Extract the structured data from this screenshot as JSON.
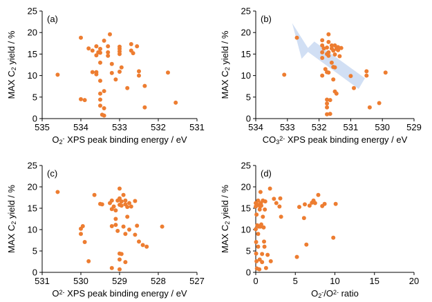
{
  "colors": {
    "marker": "#ED7D31",
    "arrow": "#C9D9F2"
  },
  "chart_data": [
    {
      "type": "scatter",
      "panel_label": "(a)",
      "xlabel_parts": [
        "O",
        "2",
        "-",
        " XPS peak binding energy / eV"
      ],
      "ylabel_parts": [
        "MAX C",
        "2",
        " yield / %"
      ],
      "xlim": [
        535,
        531
      ],
      "ylim": [
        0,
        25
      ],
      "x_reversed": true,
      "xticks": [
        "535",
        "534",
        "533",
        "532",
        "531"
      ],
      "yticks": [
        "0",
        "5",
        "10",
        "15",
        "20",
        "25"
      ],
      "points": [
        [
          534.6,
          10.2
        ],
        [
          534.0,
          18.8
        ],
        [
          534.0,
          4.5
        ],
        [
          533.9,
          4.3
        ],
        [
          533.8,
          16.3
        ],
        [
          533.7,
          10.8
        ],
        [
          533.6,
          10.8
        ],
        [
          533.6,
          10.3
        ],
        [
          533.7,
          15.8
        ],
        [
          533.6,
          16.8
        ],
        [
          533.6,
          14.7
        ],
        [
          533.55,
          15.4
        ],
        [
          533.5,
          16.2
        ],
        [
          533.5,
          15.3
        ],
        [
          533.5,
          13.0
        ],
        [
          533.5,
          8.8
        ],
        [
          533.5,
          5.8
        ],
        [
          533.5,
          4.4
        ],
        [
          533.5,
          3.0
        ],
        [
          533.45,
          0.9
        ],
        [
          533.4,
          0.7
        ],
        [
          533.4,
          2.4
        ],
        [
          533.4,
          6.4
        ],
        [
          533.4,
          18.1
        ],
        [
          533.3,
          16.8
        ],
        [
          533.3,
          15.4
        ],
        [
          533.3,
          14.6
        ],
        [
          533.2,
          10.6
        ],
        [
          533.25,
          19.6
        ],
        [
          533.2,
          12.7
        ],
        [
          533.1,
          9.1
        ],
        [
          533.0,
          15.0
        ],
        [
          533.0,
          15.6
        ],
        [
          533.0,
          16.2
        ],
        [
          533.0,
          16.7
        ],
        [
          533.0,
          10.9
        ],
        [
          532.95,
          11.9
        ],
        [
          532.8,
          7.1
        ],
        [
          532.7,
          15.8
        ],
        [
          532.7,
          17.3
        ],
        [
          532.65,
          15.2
        ],
        [
          532.55,
          16.8
        ],
        [
          532.5,
          11.0
        ],
        [
          532.5,
          10.0
        ],
        [
          532.35,
          2.6
        ],
        [
          532.35,
          7.6
        ],
        [
          531.75,
          10.7
        ],
        [
          531.55,
          3.7
        ]
      ]
    },
    {
      "type": "scatter",
      "panel_label": "(b)",
      "xlabel_parts": [
        "CO",
        "3",
        "2-",
        " XPS peak binding energy / eV"
      ],
      "ylabel_parts": [
        "MAX C",
        "2",
        " yield / %"
      ],
      "xlim": [
        534,
        529
      ],
      "ylim": [
        0,
        25
      ],
      "x_reversed": true,
      "xticks": [
        "534",
        "533",
        "532",
        "531",
        "530",
        "529"
      ],
      "yticks": [
        "0",
        "5",
        "10",
        "15",
        "20",
        "25"
      ],
      "points": [
        [
          533.1,
          10.2
        ],
        [
          532.7,
          18.8
        ],
        [
          531.9,
          18.2
        ],
        [
          531.9,
          17.0
        ],
        [
          531.9,
          15.4
        ],
        [
          531.85,
          16.3
        ],
        [
          531.9,
          14.1
        ],
        [
          531.9,
          10.0
        ],
        [
          531.8,
          11.5
        ],
        [
          531.75,
          16.5
        ],
        [
          531.75,
          15.0
        ],
        [
          531.75,
          10.8
        ],
        [
          531.75,
          4.4
        ],
        [
          531.75,
          3.5
        ],
        [
          531.75,
          2.6
        ],
        [
          531.75,
          1.0
        ],
        [
          531.7,
          19.6
        ],
        [
          531.7,
          17.8
        ],
        [
          531.7,
          15.4
        ],
        [
          531.7,
          14.6
        ],
        [
          531.7,
          10.7
        ],
        [
          531.65,
          4.3
        ],
        [
          531.65,
          1.1
        ],
        [
          531.6,
          17.0
        ],
        [
          531.6,
          16.3
        ],
        [
          531.6,
          13.0
        ],
        [
          531.55,
          15.8
        ],
        [
          531.55,
          12.0
        ],
        [
          531.55,
          9.1
        ],
        [
          531.5,
          17.0
        ],
        [
          531.5,
          14.9
        ],
        [
          531.5,
          11.9
        ],
        [
          531.5,
          6.3
        ],
        [
          531.45,
          16.2
        ],
        [
          531.45,
          5.8
        ],
        [
          531.4,
          16.6
        ],
        [
          531.4,
          15.9
        ],
        [
          531.35,
          14.5
        ],
        [
          531.3,
          16.4
        ],
        [
          531.0,
          9.9
        ],
        [
          530.9,
          7.1
        ],
        [
          530.5,
          11.0
        ],
        [
          530.5,
          10.0
        ],
        [
          530.4,
          2.6
        ],
        [
          530.1,
          3.6
        ],
        [
          529.9,
          10.7
        ]
      ]
    },
    {
      "type": "scatter",
      "panel_label": "(c)",
      "xlabel_parts": [
        "O",
        "2-",
        "",
        " XPS peak binding energy / eV"
      ],
      "ylabel_parts": [
        "MAX C",
        "2",
        " yield / %"
      ],
      "xlim": [
        531,
        527
      ],
      "ylim": [
        0,
        25
      ],
      "x_reversed": true,
      "xticks": [
        "531",
        "530",
        "529",
        "528",
        "527"
      ],
      "yticks": [
        "0",
        "5",
        "10",
        "15",
        "20",
        "25"
      ],
      "points": [
        [
          530.6,
          18.8
        ],
        [
          530.0,
          10.2
        ],
        [
          530.0,
          9.0
        ],
        [
          529.95,
          10.8
        ],
        [
          529.9,
          7.1
        ],
        [
          529.8,
          2.6
        ],
        [
          529.65,
          18.1
        ],
        [
          529.5,
          16.0
        ],
        [
          529.45,
          15.9
        ],
        [
          529.25,
          16.2
        ],
        [
          529.2,
          16.8
        ],
        [
          529.2,
          14.8
        ],
        [
          529.2,
          10.8
        ],
        [
          529.2,
          1.0
        ],
        [
          529.15,
          15.4
        ],
        [
          529.1,
          14.5
        ],
        [
          529.1,
          12.5
        ],
        [
          529.1,
          11.1
        ],
        [
          529.05,
          16.8
        ],
        [
          529.05,
          9.7
        ],
        [
          529.0,
          19.6
        ],
        [
          529.0,
          17.3
        ],
        [
          529.0,
          15.8
        ],
        [
          529.0,
          4.4
        ],
        [
          529.0,
          3.0
        ],
        [
          529.0,
          0.7
        ],
        [
          528.95,
          16.6
        ],
        [
          528.95,
          15.6
        ],
        [
          528.95,
          4.3
        ],
        [
          528.9,
          18.1
        ],
        [
          528.9,
          10.7
        ],
        [
          528.85,
          16.8
        ],
        [
          528.85,
          15.9
        ],
        [
          528.85,
          9.0
        ],
        [
          528.85,
          2.4
        ],
        [
          528.8,
          15.3
        ],
        [
          528.8,
          13.0
        ],
        [
          528.75,
          16.2
        ],
        [
          528.75,
          10.0
        ],
        [
          528.7,
          15.4
        ],
        [
          528.6,
          16.7
        ],
        [
          528.6,
          8.8
        ],
        [
          528.55,
          10.9
        ],
        [
          528.5,
          7.2
        ],
        [
          528.4,
          6.4
        ],
        [
          528.3,
          6.0
        ],
        [
          527.9,
          10.7
        ]
      ]
    },
    {
      "type": "scatter",
      "panel_label": "(d)",
      "xlabel_parts": [
        "O",
        "2",
        "-",
        "/O",
        "2-",
        " ratio"
      ],
      "ylabel_parts": [
        "MAX C",
        "2",
        " yield / %"
      ],
      "xlim": [
        0,
        20
      ],
      "ylim": [
        0,
        25
      ],
      "x_reversed": false,
      "xticks": [
        "0",
        "5",
        "10",
        "15",
        "20"
      ],
      "yticks": [
        "0",
        "5",
        "10",
        "15",
        "20",
        "25"
      ],
      "points": [
        [
          0.0,
          16.2
        ],
        [
          0.0,
          15.4
        ],
        [
          0.0,
          10.1
        ],
        [
          0.05,
          7.1
        ],
        [
          0.05,
          4.4
        ],
        [
          0.1,
          13.5
        ],
        [
          0.1,
          2.6
        ],
        [
          0.15,
          0.9
        ],
        [
          0.2,
          11.0
        ],
        [
          0.25,
          15.8
        ],
        [
          0.3,
          16.8
        ],
        [
          0.3,
          9.0
        ],
        [
          0.3,
          6.0
        ],
        [
          0.4,
          10.7
        ],
        [
          0.45,
          0.7
        ],
        [
          0.5,
          14.7
        ],
        [
          0.5,
          3.0
        ],
        [
          0.55,
          15.4
        ],
        [
          0.6,
          18.8
        ],
        [
          0.6,
          10.7
        ],
        [
          0.65,
          16.2
        ],
        [
          0.7,
          15.6
        ],
        [
          0.7,
          11.2
        ],
        [
          0.8,
          4.3
        ],
        [
          0.8,
          2.4
        ],
        [
          0.9,
          13.0
        ],
        [
          0.9,
          16.8
        ],
        [
          1.0,
          10.5
        ],
        [
          1.05,
          7.2
        ],
        [
          1.1,
          6.0
        ],
        [
          1.15,
          14.7
        ],
        [
          1.2,
          16.6
        ],
        [
          1.3,
          1.0
        ],
        [
          1.5,
          4.1
        ],
        [
          1.8,
          19.6
        ],
        [
          1.9,
          2.6
        ],
        [
          2.3,
          17.2
        ],
        [
          2.6,
          16.2
        ],
        [
          3.0,
          15.4
        ],
        [
          3.1,
          17.3
        ],
        [
          3.2,
          13.0
        ],
        [
          5.2,
          3.6
        ],
        [
          5.5,
          15.3
        ],
        [
          6.1,
          12.7
        ],
        [
          6.2,
          15.9
        ],
        [
          6.4,
          6.5
        ],
        [
          6.8,
          15.6
        ],
        [
          7.1,
          16.3
        ],
        [
          7.3,
          16.8
        ],
        [
          7.5,
          16.2
        ],
        [
          7.9,
          18.1
        ],
        [
          8.4,
          15.5
        ],
        [
          8.7,
          16.0
        ],
        [
          9.8,
          8.1
        ],
        [
          10.1,
          16.0
        ]
      ]
    }
  ]
}
